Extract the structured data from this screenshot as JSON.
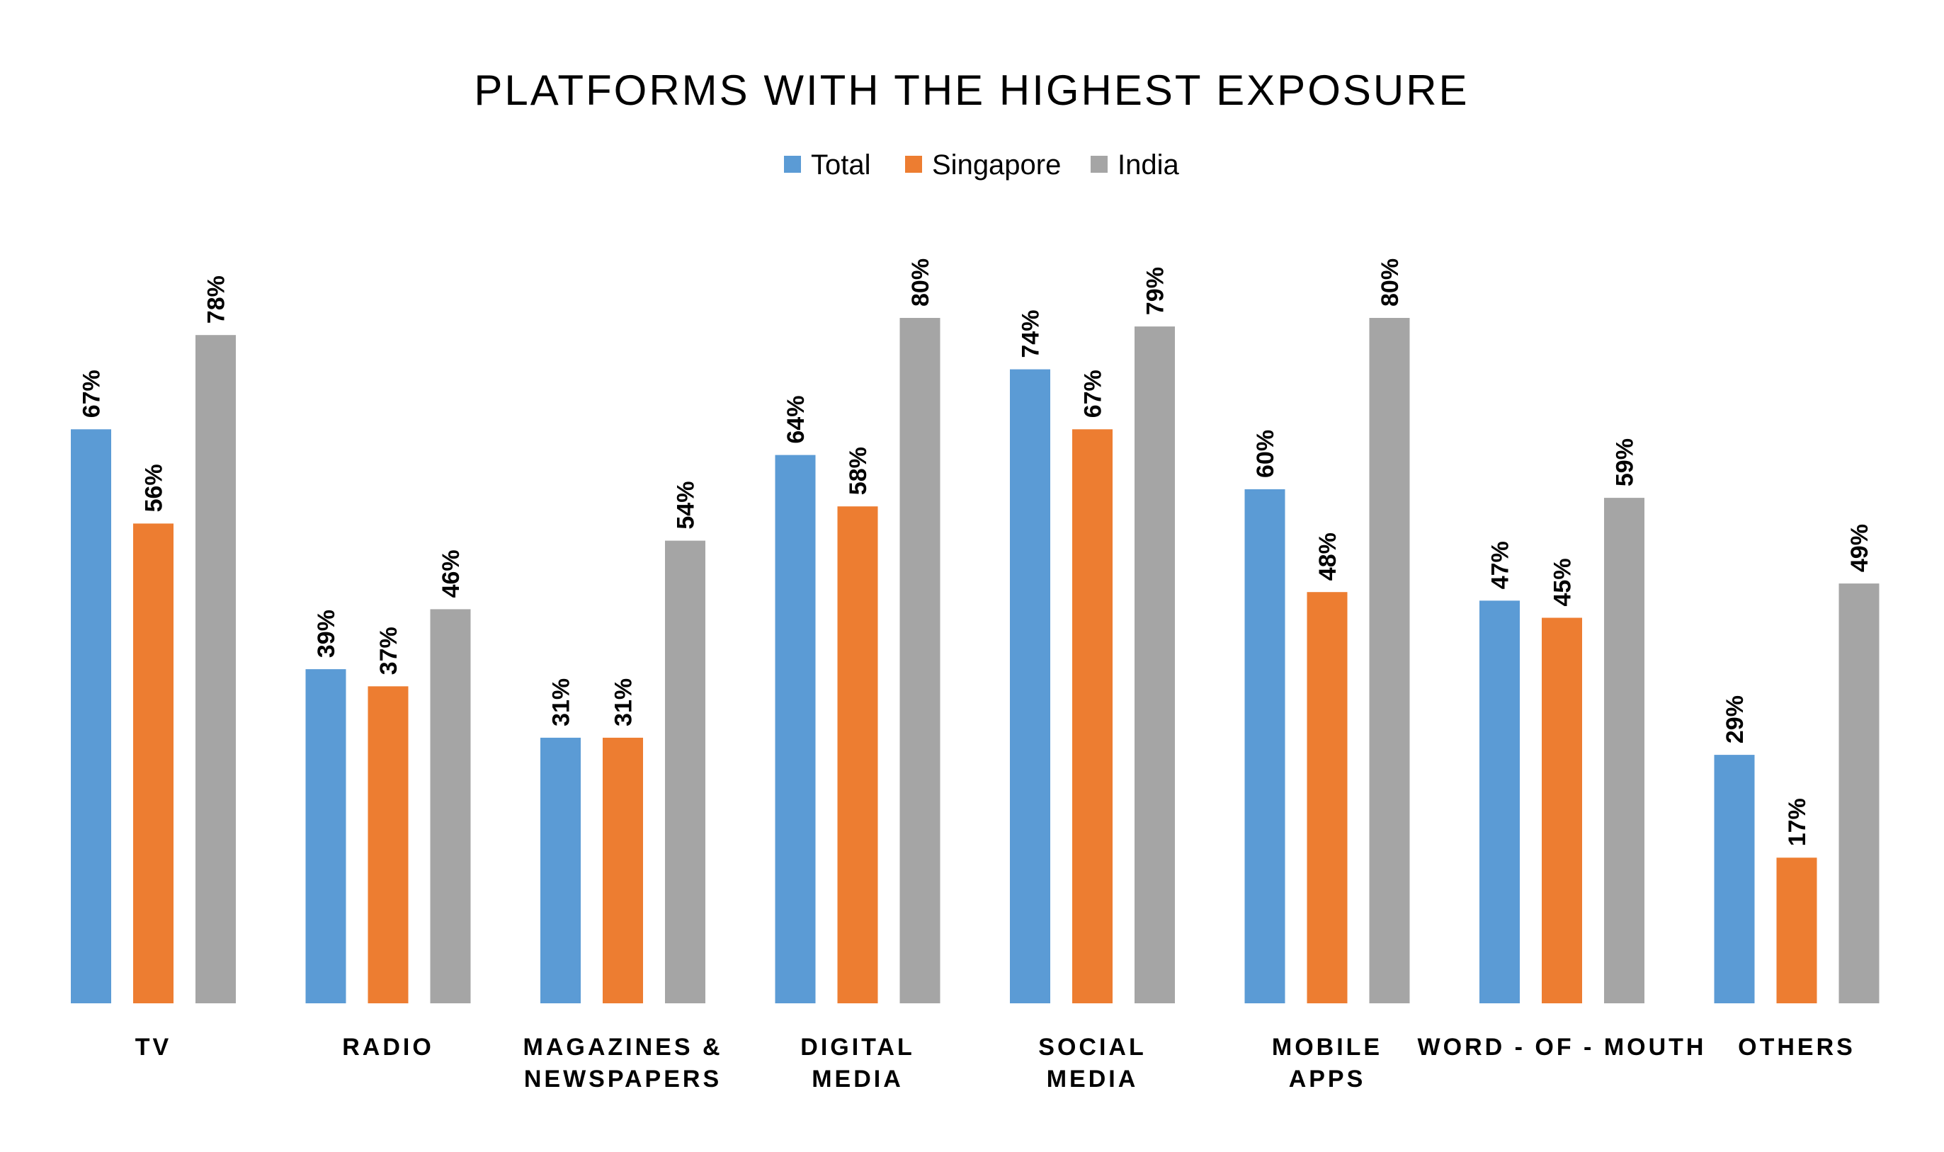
{
  "chart_data": {
    "type": "bar",
    "title": "PLATFORMS WITH THE HIGHEST EXPOSURE",
    "categories": [
      [
        "TV"
      ],
      [
        "RADIO"
      ],
      [
        "MAGAZINES &",
        "NEWSPAPERS"
      ],
      [
        "DIGITAL",
        "MEDIA"
      ],
      [
        "SOCIAL",
        "MEDIA"
      ],
      [
        "MOBILE",
        "APPS"
      ],
      [
        "WORD - OF - MOUTH"
      ],
      [
        "OTHERS"
      ]
    ],
    "series": [
      {
        "name": "Total",
        "color": "#5B9BD5",
        "values": [
          67,
          39,
          31,
          64,
          74,
          60,
          47,
          29
        ]
      },
      {
        "name": "Singapore",
        "color": "#ED7D31",
        "values": [
          56,
          37,
          31,
          58,
          67,
          48,
          45,
          17
        ]
      },
      {
        "name": "India",
        "color": "#A5A5A5",
        "values": [
          78,
          46,
          54,
          80,
          79,
          80,
          59,
          49
        ]
      }
    ],
    "value_suffix": "%",
    "ylim": [
      0,
      100
    ],
    "grid": false,
    "legend_position": "top-center",
    "xlabel": "",
    "ylabel": ""
  }
}
